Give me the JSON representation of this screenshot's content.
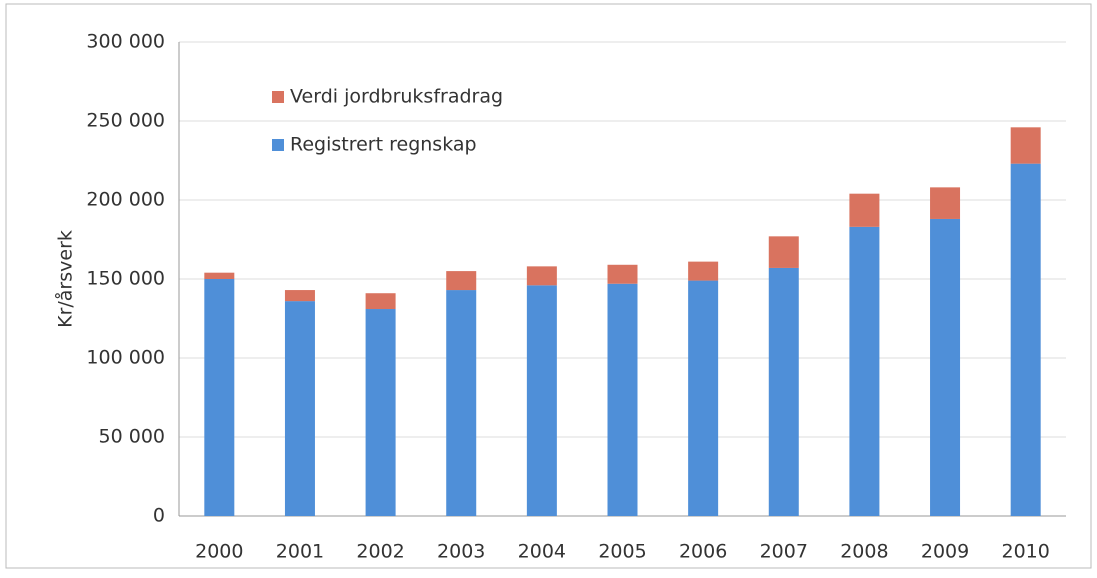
{
  "chart_data": {
    "type": "bar",
    "stacked": true,
    "ylabel": "Kr/årsverk",
    "categories": [
      "2000",
      "2001",
      "2002",
      "2003",
      "2004",
      "2005",
      "2006",
      "2007",
      "2008",
      "2009",
      "2010"
    ],
    "series": [
      {
        "name": "Registrert regnskap",
        "color": "#4f8fd8",
        "values": [
          150000,
          136000,
          131000,
          143000,
          146000,
          147000,
          149000,
          157000,
          183000,
          188000,
          223000
        ]
      },
      {
        "name": "Verdi jordbruksfradrag",
        "color": "#d9735f",
        "values": [
          4000,
          7000,
          10000,
          12000,
          12000,
          12000,
          12000,
          20000,
          21000,
          20000,
          23000
        ]
      }
    ],
    "ylim": [
      0,
      300000
    ],
    "yticks": [
      0,
      {
        "value": 50000,
        "label": "50 000"
      },
      {
        "value": 100000,
        "label": "100 000"
      },
      {
        "value": 150000,
        "label": "150 000"
      },
      {
        "value": 200000,
        "label": "200 000"
      },
      {
        "value": 250000,
        "label": "250 000"
      },
      {
        "value": 300000,
        "label": "300 000"
      }
    ],
    "grid": true,
    "legend": "upper left"
  }
}
